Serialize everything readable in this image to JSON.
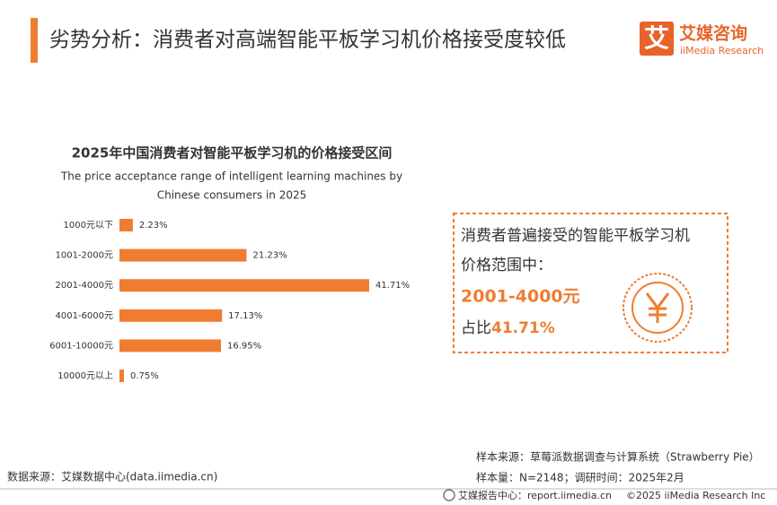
{
  "header": {
    "title": "劣势分析：消费者对高端智能平板学习机价格接受度较低",
    "logo_mark": "艾",
    "logo_name": "艾媒咨询",
    "logo_sub": "iiMedia Research"
  },
  "chart_data": {
    "type": "bar",
    "orientation": "horizontal",
    "title": "2025年中国消费者对智能平板学习机的价格接受区间",
    "subtitle": [
      "The price acceptance range of intelligent learning machines by",
      "Chinese consumers in 2025"
    ],
    "categories": [
      "1000元以下",
      "1001-2000元",
      "2001-4000元",
      "4001-6000元",
      "6001-10000元",
      "10000元以上"
    ],
    "values": [
      2.23,
      21.23,
      41.71,
      17.13,
      16.95,
      0.75
    ],
    "value_labels": [
      "2.23%",
      "21.23%",
      "41.71%",
      "17.13%",
      "16.95%",
      "0.75%"
    ],
    "color": "#ef7d31"
  },
  "callout": {
    "line1": "消费者普遍接受的智能平板学习机",
    "line2": "价格范围中：",
    "range": "2001-4000元",
    "share_prefix": "占比",
    "share": "41.71%"
  },
  "footer": {
    "source": "数据来源：艾媒数据中心(data.iimedia.cn)",
    "sample_source": "样本来源：草莓派数据调查与计算系统（Strawberry Pie）",
    "sample_size": "样本量：N=2148；调研时间：2025年2月",
    "report_center": "艾媒报告中心：report.iimedia.cn",
    "copyright": "©2025  iiMedia Research  Inc"
  }
}
